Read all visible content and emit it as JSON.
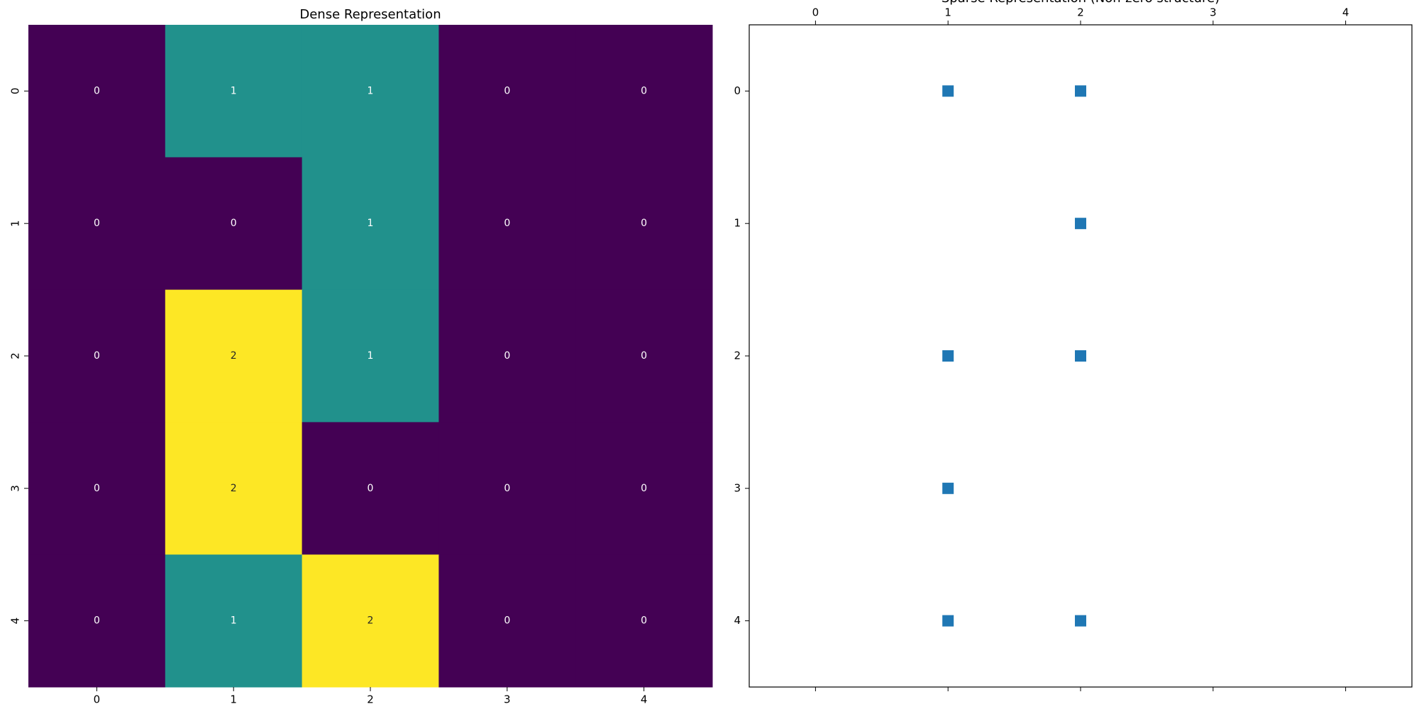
{
  "chart_data": [
    {
      "type": "heatmap",
      "title": "Dense Representation",
      "categories": [
        "0",
        "1",
        "2",
        "3",
        "4"
      ],
      "rows": [
        "0",
        "1",
        "2",
        "3",
        "4"
      ],
      "values": [
        [
          0,
          1,
          1,
          0,
          0
        ],
        [
          0,
          0,
          1,
          0,
          0
        ],
        [
          0,
          2,
          1,
          0,
          0
        ],
        [
          0,
          2,
          0,
          0,
          0
        ],
        [
          0,
          1,
          2,
          0,
          0
        ]
      ],
      "colormap": [
        "#440154",
        "#21918c",
        "#fde725"
      ],
      "clim": [
        0,
        2
      ]
    },
    {
      "type": "scatter",
      "title": "Sparse Representation (Non-zero structure)",
      "x": [
        1,
        2,
        2,
        1,
        2,
        1,
        1,
        2
      ],
      "y": [
        0,
        0,
        1,
        2,
        2,
        3,
        4,
        4
      ],
      "xlim": [
        -0.5,
        4.5
      ],
      "ylim": [
        4.5,
        -0.5
      ],
      "xticks": [
        0,
        1,
        2,
        3,
        4
      ],
      "yticks": [
        0,
        1,
        2,
        3,
        4
      ],
      "color": "#1f77b4",
      "marker": "square"
    }
  ]
}
